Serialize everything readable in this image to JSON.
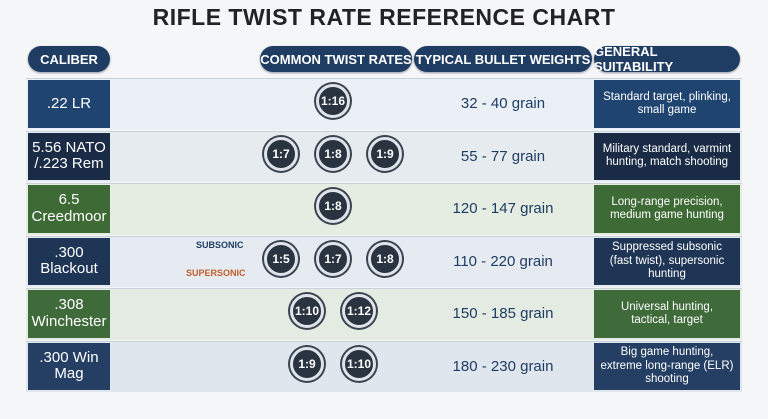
{
  "title": "RIFLE TWIST RATE REFERENCE CHART",
  "headers": [
    "CALIBER",
    "COMMON TWIST RATES",
    "TYPICAL BULLET WEIGHTS",
    "GENERAL SUITABILITY"
  ],
  "rows": [
    {
      "caliber": ".22 LR",
      "twist_rates": [
        "1:16"
      ],
      "weights": "32 - 40 grain",
      "suitability": "Standard target, plinking, small game"
    },
    {
      "caliber": "5.56 NATO /.223 Rem",
      "twist_rates": [
        "1:7",
        "1:8",
        "1:9"
      ],
      "weights": "55 - 77 grain",
      "suitability": "Military standard, varmint hunting, match shooting"
    },
    {
      "caliber": "6.5 Creedmoor",
      "twist_rates": [
        "1:8"
      ],
      "weights": "120 - 147 grain",
      "suitability": "Long-range precision, medium game hunting"
    },
    {
      "caliber": ".300 Blackout",
      "twist_rates": [
        "1:5",
        "1:7",
        "1:8"
      ],
      "weights": "110 - 220 grain",
      "suitability": "Suppressed subsonic (fast twist), supersonic hunting",
      "tags": [
        "SUBSONIC",
        "SUPERSONIC"
      ]
    },
    {
      "caliber": ".308 Winchester",
      "twist_rates": [
        "1:10",
        "1:12"
      ],
      "weights": "150 - 185 grain",
      "suitability": "Universal hunting, tactical, target"
    },
    {
      "caliber": ".300 Win Mag",
      "twist_rates": [
        "1:9",
        "1:10"
      ],
      "weights": "180 - 230 grain",
      "suitability": "Big game hunting, extreme long-range (ELR) shooting"
    }
  ]
}
